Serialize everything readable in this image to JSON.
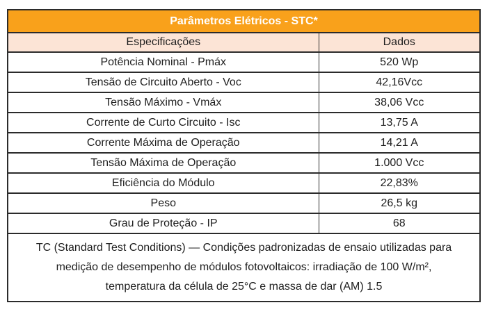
{
  "colors": {
    "header_bg": "#F9A11B",
    "subheader_bg": "#FCE4D6",
    "header_text": "#FFFFFF",
    "body_text": "#1E1E1E",
    "border": "#2B2B2B"
  },
  "table": {
    "title": "Parâmetros Elétricos - STC*",
    "columns": {
      "spec": "Especificações",
      "data": "Dados"
    },
    "rows": [
      {
        "spec": "Potência Nominal - Pmáx",
        "value": "520 Wp"
      },
      {
        "spec": "Tensão de Circuito Aberto - Voc",
        "value": "42,16Vcc"
      },
      {
        "spec": "Tensão Máximo - Vmáx",
        "value": "38,06 Vcc"
      },
      {
        "spec": "Corrente de Curto Circuito - Isc",
        "value": "13,75 A"
      },
      {
        "spec": "Corrente Máxima de Operação",
        "value": "14,21 A"
      },
      {
        "spec": "Tensão Máxima de Operação",
        "value": "1.000 Vcc"
      },
      {
        "spec": "Eficiência do Módulo",
        "value": "22,83%"
      },
      {
        "spec": "Peso",
        "value": "26,5 kg"
      },
      {
        "spec": "Grau de Proteção - IP",
        "value": "68"
      }
    ],
    "footnote_lines": [
      "TC (Standard Test Conditions) — Condições padronizadas de ensaio utilizadas para",
      "medição de desempenho de módulos fotovoltaicos: irradiação de 100 W/m²,",
      "temperatura da célula de 25°C  e massa de dar (AM) 1.5"
    ]
  }
}
